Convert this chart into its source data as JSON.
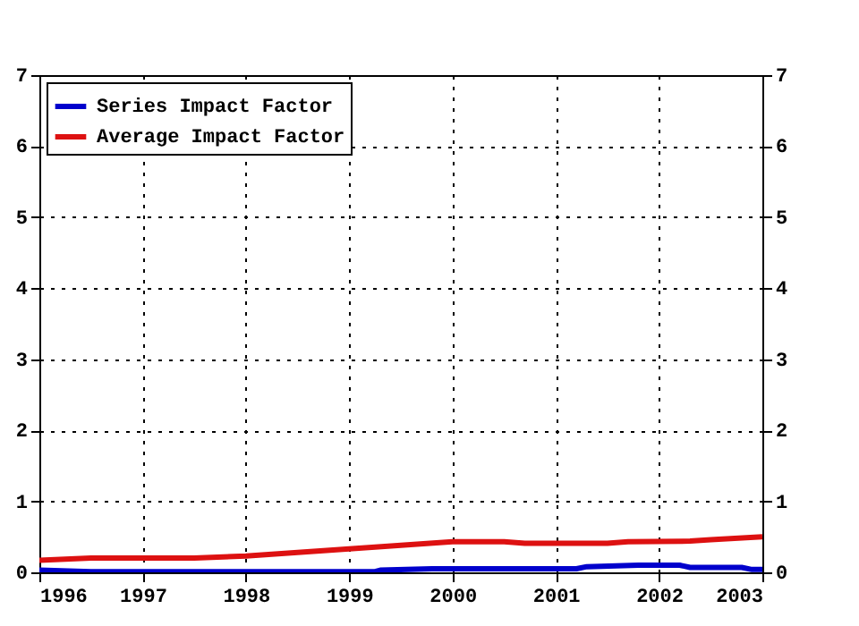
{
  "chart_data": {
    "type": "line",
    "xlim": [
      1996,
      2003
    ],
    "xticks": [
      1996,
      1997,
      1998,
      1999,
      2000,
      2001,
      2002,
      2003
    ],
    "ylim": [
      0,
      7
    ],
    "yticks": [
      0,
      1,
      2,
      3,
      4,
      5,
      6,
      7
    ],
    "y2lim": [
      0,
      7
    ],
    "y2ticks": [
      0,
      1,
      2,
      3,
      4,
      5,
      6,
      7
    ],
    "grid": true,
    "legend": "top left",
    "series": [
      {
        "name": "Series Impact Factor",
        "color": "#0000cc",
        "x": [
          1996,
          1996.5,
          1999.25,
          1999.3,
          1999.8,
          2001.2,
          2001.3,
          2001.8,
          2002.2,
          2002.3,
          2002.8,
          2002.9,
          2003
        ],
        "values": [
          0.03,
          0.01,
          0.01,
          0.03,
          0.05,
          0.05,
          0.08,
          0.1,
          0.1,
          0.07,
          0.07,
          0.04,
          0.04
        ]
      },
      {
        "name": "Average Impact Factor",
        "color": "#dd1111",
        "x": [
          1996,
          1996.5,
          1997.5,
          1998,
          1998.5,
          1999,
          1999.5,
          2000,
          2000.5,
          2000.7,
          2001.5,
          2001.7,
          2002.3,
          2002.5,
          2003
        ],
        "values": [
          0.17,
          0.2,
          0.2,
          0.23,
          0.28,
          0.33,
          0.38,
          0.43,
          0.43,
          0.41,
          0.41,
          0.43,
          0.44,
          0.46,
          0.5
        ]
      }
    ]
  }
}
